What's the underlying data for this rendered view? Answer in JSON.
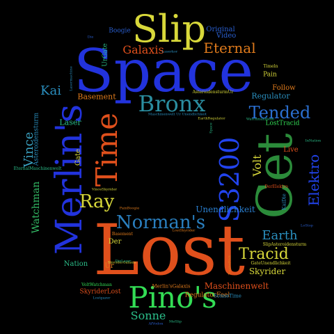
{
  "cloud": {
    "background": "#000000",
    "words": [
      {
        "text": "Space",
        "color": "#2233dd"
      },
      {
        "text": "Lost",
        "color": "#e0501c"
      },
      {
        "text": "Cet",
        "color": "#2b8b3a"
      },
      {
        "text": "Merlin's",
        "color": "#2233dd"
      },
      {
        "text": "Slip",
        "color": "#d8d83a"
      },
      {
        "text": "Time",
        "color": "#e0501c"
      },
      {
        "text": "S3200",
        "color": "#2244ee"
      },
      {
        "text": "Pino's",
        "color": "#33dd55"
      },
      {
        "text": "Bronx",
        "color": "#2b8ea0"
      },
      {
        "text": "Norman's",
        "color": "#2a7fbf"
      },
      {
        "text": "Tended",
        "color": "#2b6fd0"
      },
      {
        "text": "Tracid",
        "color": "#d8d83a"
      },
      {
        "text": "Ray",
        "color": "#d8d83a"
      },
      {
        "text": "Eternal",
        "color": "#e07b1c"
      },
      {
        "text": "Galaxis",
        "color": "#e0501c"
      },
      {
        "text": "Elektro",
        "color": "#2244ee"
      },
      {
        "text": "Earth",
        "color": "#2a8fbf"
      },
      {
        "text": "Vince",
        "color": "#3aa0bf"
      },
      {
        "text": "Volt",
        "color": "#d8d83a"
      },
      {
        "text": "Sonne",
        "color": "#2bbf8a"
      },
      {
        "text": "Watchman",
        "color": "#33bb66"
      },
      {
        "text": "Kai",
        "color": "#2a8fbf"
      },
      {
        "text": "Unendlichkeit",
        "color": "#2a7fd0"
      },
      {
        "text": "Maschinenwelt",
        "color": "#e0501c"
      },
      {
        "text": "Skyrider",
        "color": "#d8d83a"
      },
      {
        "text": "Basement",
        "color": "#e07b1c"
      },
      {
        "text": "Regulator",
        "color": "#2a8fbf"
      },
      {
        "text": "Laser",
        "color": "#2bbf8a"
      },
      {
        "text": "Asteroidensturm",
        "color": "#2a8fbf"
      },
      {
        "text": "Live",
        "color": "#e0501c"
      },
      {
        "text": "LostTracid",
        "color": "#33dd55"
      },
      {
        "text": "Follow",
        "color": "#e07b1c"
      },
      {
        "text": "Pain",
        "color": "#d8d83a"
      },
      {
        "text": "Original",
        "color": "#2a5fd0"
      },
      {
        "text": "Video",
        "color": "#2a5fd0"
      },
      {
        "text": "Boogie",
        "color": "#2a5fd0"
      },
      {
        "text": "UrGate",
        "color": "#2bbf8a"
      },
      {
        "text": "Gate",
        "color": "#d8d83a"
      },
      {
        "text": "Nation",
        "color": "#2bbf8a"
      },
      {
        "text": "Der",
        "color": "#d8d83a"
      },
      {
        "text": "Ur",
        "color": "#e07b1c"
      },
      {
        "text": "SkyriderLost",
        "color": "#e0501c"
      },
      {
        "text": "RegulatorFeel",
        "color": "#e07b1c"
      },
      {
        "text": "Merlin'sGalaxis",
        "color": "#e07b1c"
      },
      {
        "text": "SonneTime",
        "color": "#2a8fbf"
      },
      {
        "text": "AsteroidensturmUr",
        "color": "#d8d83a"
      },
      {
        "text": "Basement",
        "color": "#e07b1c"
      },
      {
        "text": "DerElektro",
        "color": "#e0501c"
      },
      {
        "text": "KaiDie",
        "color": "#2a8fbf"
      },
      {
        "text": "LostSkyrider",
        "color": "#e07b1c"
      },
      {
        "text": "SlipAsteroidensturm",
        "color": "#d8d83a"
      },
      {
        "text": "GateUnendlichkeit",
        "color": "#d8d83a"
      },
      {
        "text": "VoltWatchman",
        "color": "#33dd55"
      },
      {
        "text": "Timeln",
        "color": "#d8d83a"
      },
      {
        "text": "Die",
        "color": "#2a5fd0"
      },
      {
        "text": "Laserkor",
        "color": "#2a8fbf"
      },
      {
        "text": "EternalMaschinenwelt",
        "color": "#2bbf8a"
      },
      {
        "text": "VinceSkyrider",
        "color": "#d8d83a"
      },
      {
        "text": "PainBoogie",
        "color": "#e07b1c"
      },
      {
        "text": "WatchmanHeim",
        "color": "#2bbf8a"
      },
      {
        "text": "EarthRegulator",
        "color": "#d8d83a"
      },
      {
        "text": "InNation",
        "color": "#2bbf8a"
      },
      {
        "text": "LoStop",
        "color": "#2a5fd0"
      },
      {
        "text": "SkyriderGalaxis",
        "color": "#d8d83a"
      },
      {
        "text": "TendedVolt",
        "color": "#e07b1c"
      },
      {
        "text": "AfVodon",
        "color": "#2a5fd0"
      },
      {
        "text": "MeSlip",
        "color": "#2bbf8a"
      },
      {
        "text": "Lostgazer",
        "color": "#2a8fbf"
      },
      {
        "text": "DieLaser",
        "color": "#2bbf8a"
      },
      {
        "text": "Space",
        "color": "#2bbf8a"
      },
      {
        "text": "Lasermachine",
        "color": "#2a8fbf"
      },
      {
        "text": "Maschinenwelt Ur Unendlichkeit",
        "color": "#2a8fbf"
      }
    ]
  }
}
